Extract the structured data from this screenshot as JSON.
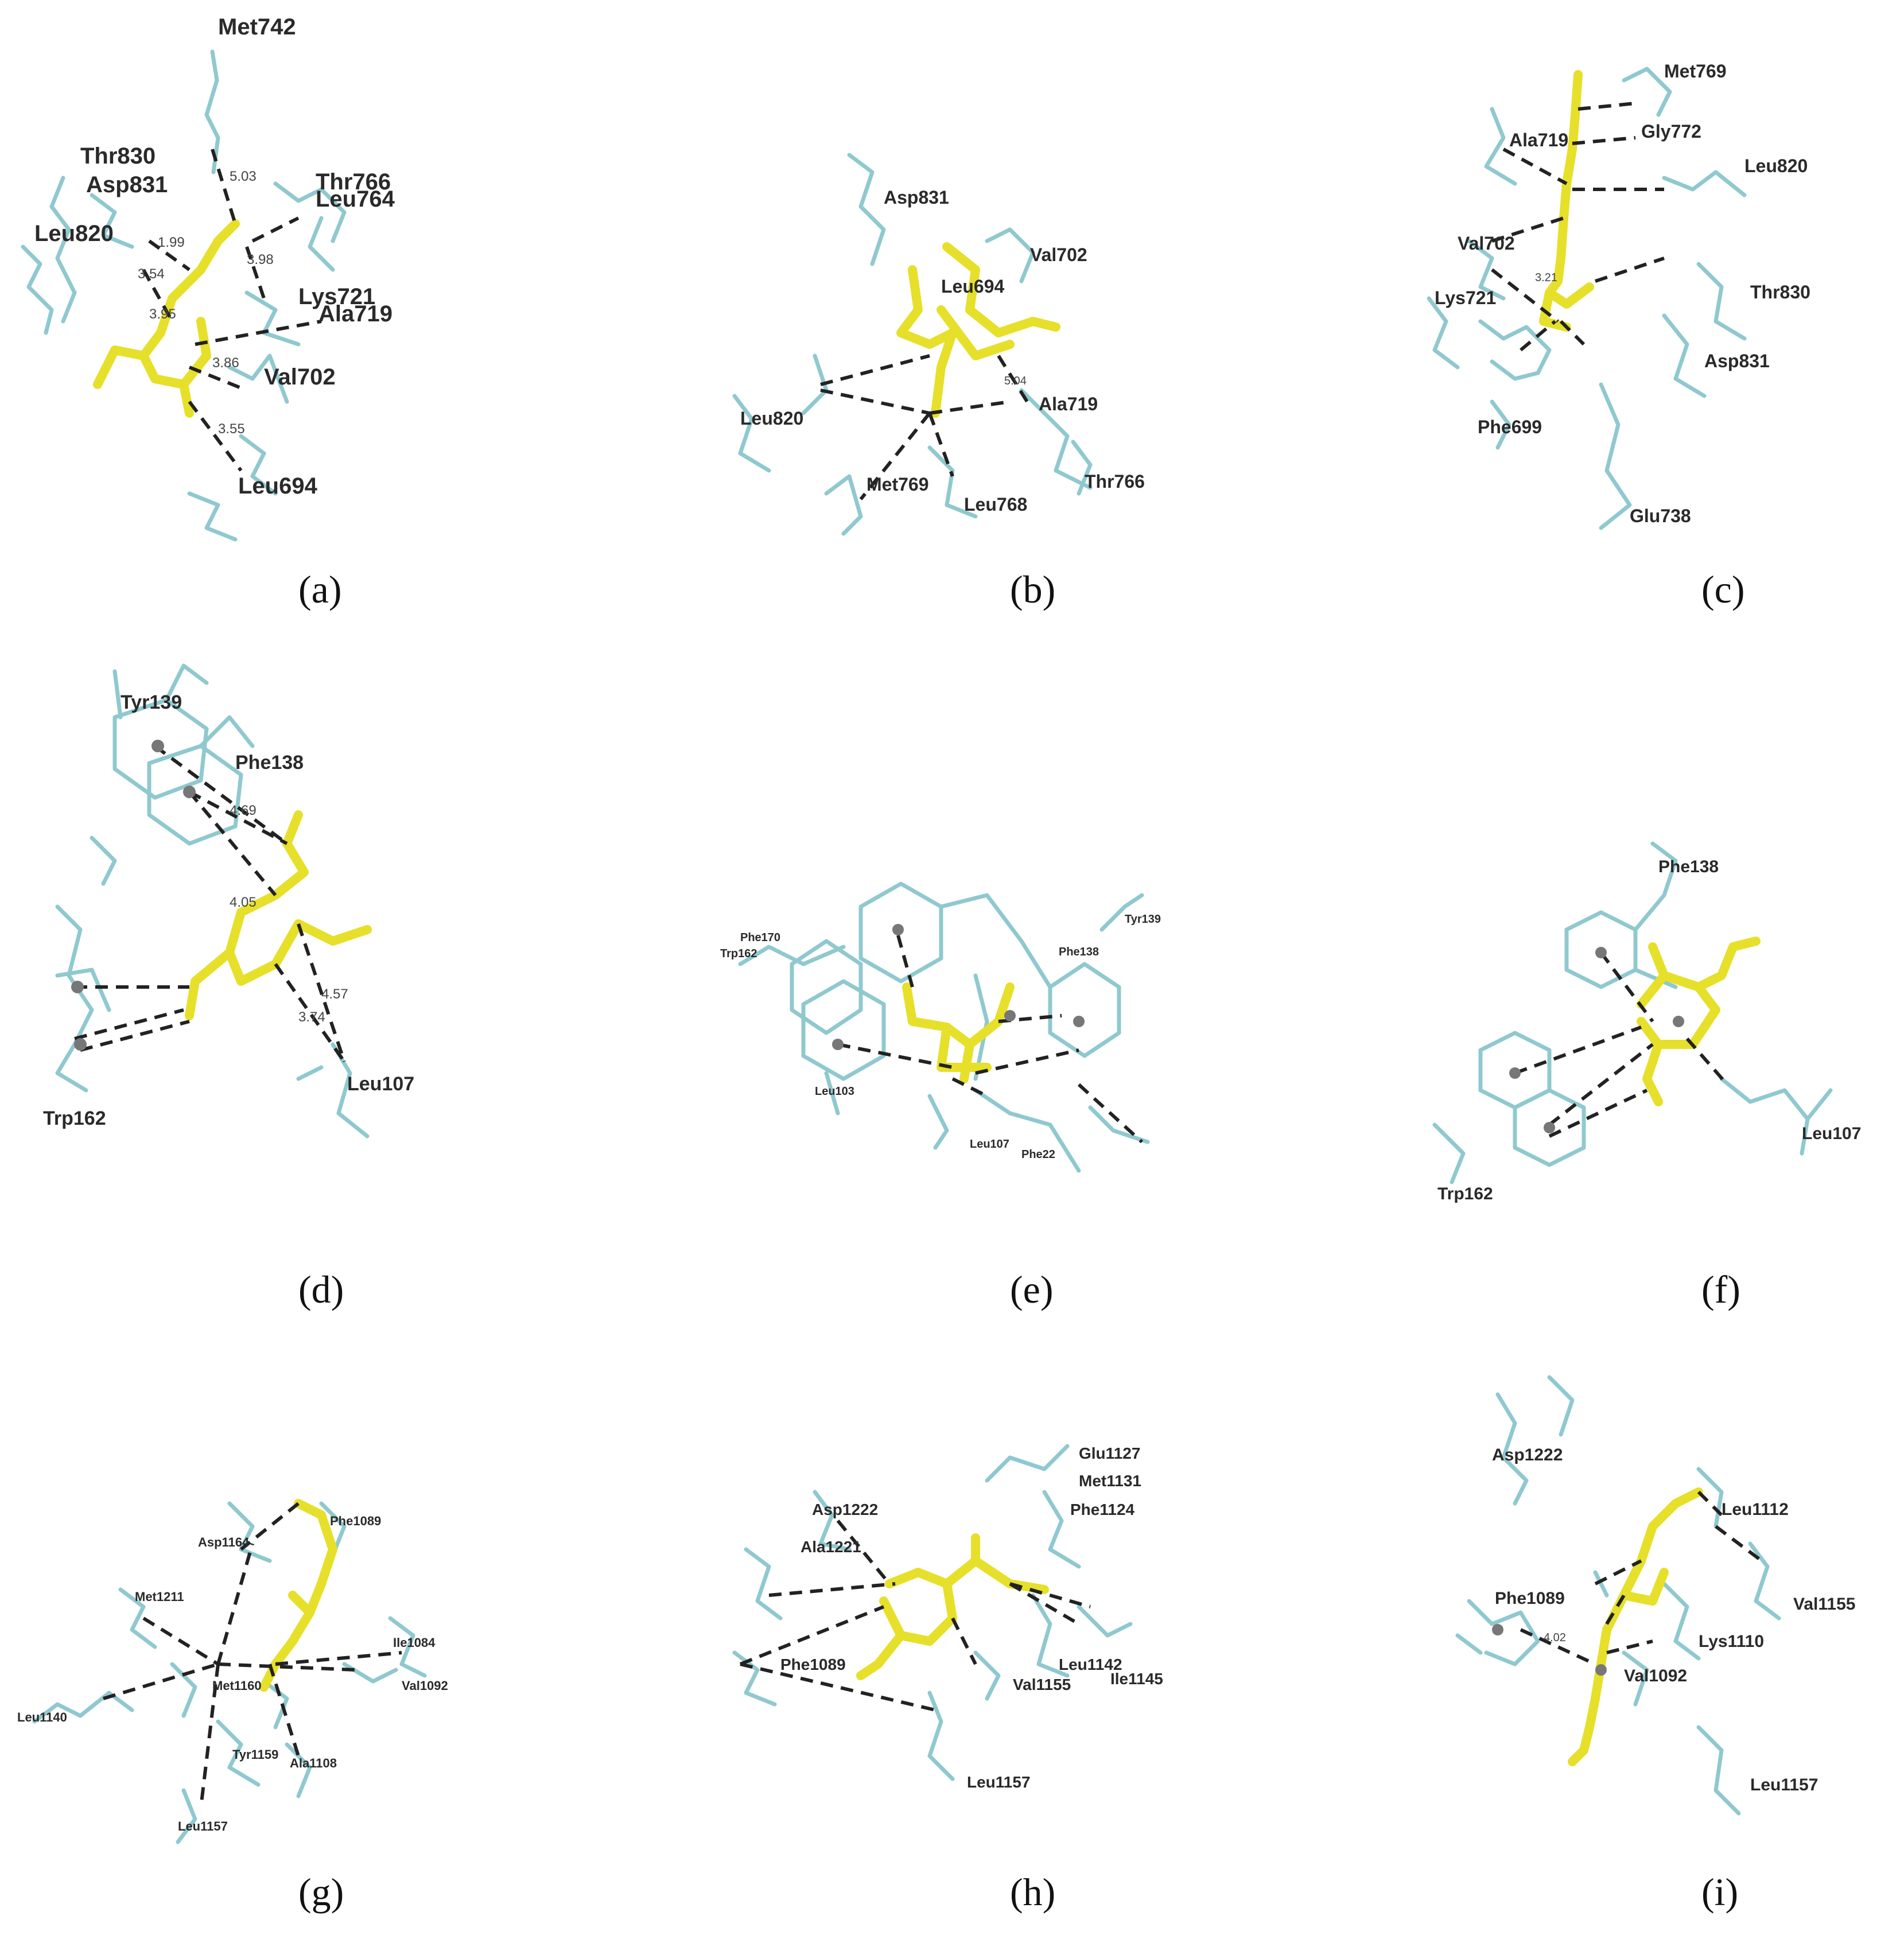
{
  "colors": {
    "residue": "#8fc9cf",
    "ligand": "#e6e02a",
    "contact": "#222222",
    "centroid": "#777777"
  },
  "panels": [
    {
      "label": "(a)",
      "residues": [
        "Met742",
        "Thr830",
        "Asp831",
        "Thr766",
        "Leu764",
        "Leu820",
        "Lys721",
        "Ala719",
        "Val702",
        "Leu694"
      ],
      "distances": [
        "5.03",
        "1.99",
        "3.54",
        "3.98",
        "3.95",
        "3.86",
        "3.55"
      ]
    },
    {
      "label": "(b)",
      "residues": [
        "Asp831",
        "Val702",
        "Leu694",
        "Leu820",
        "Ala719",
        "Met769",
        "Leu768",
        "Thr766"
      ],
      "distances": [
        "5.04"
      ]
    },
    {
      "label": "(c)",
      "residues": [
        "Met769",
        "Ala719",
        "Gly772",
        "Leu820",
        "Val702",
        "Lys721",
        "Thr830",
        "Asp831",
        "Phe699",
        "Glu738"
      ],
      "distances": [
        "3.21"
      ]
    },
    {
      "label": "(d)",
      "residues": [
        "Tyr139",
        "Phe138",
        "Trp162",
        "Leu107"
      ],
      "distances": [
        "4.69",
        "4.05",
        "3.74",
        "4.57"
      ]
    },
    {
      "label": "(e)",
      "residues": [
        "Phe170",
        "Trp162",
        "Tyr139",
        "Phe138",
        "Leu103",
        "Leu107",
        "Phe22"
      ],
      "distances": []
    },
    {
      "label": "(f)",
      "residues": [
        "Phe138",
        "Leu107",
        "Trp162"
      ],
      "distances": []
    },
    {
      "label": "(g)",
      "residues": [
        "Phe1089",
        "Asp1164",
        "Met1211",
        "Ile1084",
        "Met1160",
        "Val1092",
        "Leu1140",
        "Tyr1159",
        "Ala1108",
        "Leu1157"
      ],
      "distances": []
    },
    {
      "label": "(h)",
      "residues": [
        "Glu1127",
        "Met1131",
        "Asp1222",
        "Phe1124",
        "Ala1221",
        "Phe1089",
        "Leu1142",
        "Ile1145",
        "Val1155",
        "Leu1157"
      ],
      "distances": []
    },
    {
      "label": "(i)",
      "residues": [
        "Asp1222",
        "Leu1112",
        "Val1155",
        "Phe1089",
        "Lys1110",
        "Val1092",
        "Leu1157"
      ],
      "distances": [
        "4.02"
      ]
    }
  ]
}
